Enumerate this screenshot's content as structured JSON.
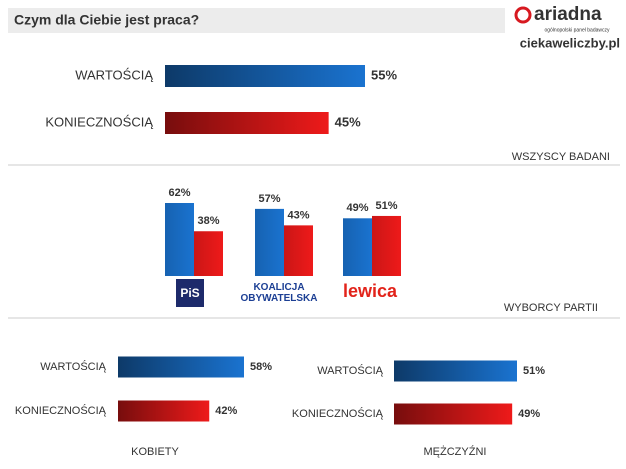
{
  "header": {
    "title": "Czym dla Ciebie jest praca?",
    "brand": "ariadna",
    "brand_tagline": "ogólnopolski panel badawczy",
    "website": "ciekaweliczby.pl"
  },
  "chart_data": [
    {
      "type": "bar",
      "orientation": "horizontal",
      "label": "WSZYSCY BADANI",
      "categories": [
        "WARTOŚCIĄ",
        "KONIECZNOŚCIĄ"
      ],
      "values": [
        55,
        45
      ],
      "value_labels": [
        "55%",
        "45%"
      ],
      "colors": [
        "#1a73d0",
        "#ee1a1a"
      ]
    },
    {
      "type": "grouped-bar",
      "orientation": "vertical",
      "label": "WYBORCY PARTII",
      "categories": [
        "PiS",
        "KOALICJA OBYWATELSKA",
        "lewica"
      ],
      "series": [
        {
          "color": "#1a73d0",
          "values": [
            62,
            57,
            49
          ],
          "value_labels": [
            "62%",
            "57%",
            "49%"
          ]
        },
        {
          "color": "#ee1a1a",
          "values": [
            38,
            43,
            51
          ],
          "value_labels": [
            "38%",
            "43%",
            "51%"
          ]
        }
      ]
    },
    {
      "type": "bar",
      "orientation": "horizontal",
      "label": "KOBIETY",
      "categories": [
        "WARTOŚCIĄ",
        "KONIECZNOŚCIĄ"
      ],
      "values": [
        58,
        42
      ],
      "value_labels": [
        "58%",
        "42%"
      ],
      "colors": [
        "#1a73d0",
        "#ee1a1a"
      ]
    },
    {
      "type": "bar",
      "orientation": "horizontal",
      "label": "MĘŻCZYŹNI",
      "categories": [
        "WARTOŚCIĄ",
        "KONIECZNOŚCIĄ"
      ],
      "values": [
        51,
        49
      ],
      "value_labels": [
        "51%",
        "49%"
      ],
      "colors": [
        "#1a73d0",
        "#ee1a1a"
      ]
    }
  ]
}
